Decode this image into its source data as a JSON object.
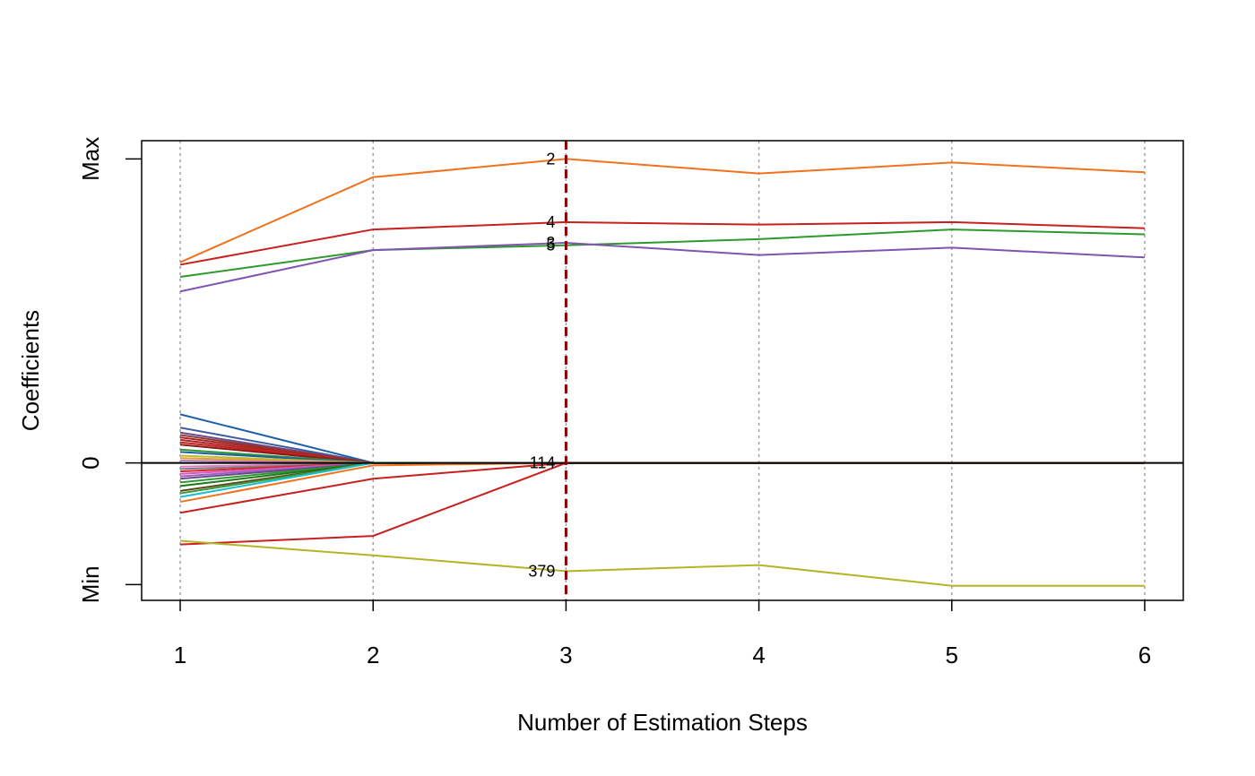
{
  "chart_data": {
    "type": "line",
    "xlabel": "Number of Estimation Steps",
    "ylabel": "Coefficients",
    "x": [
      1,
      2,
      3,
      4,
      5,
      6
    ],
    "xlim": [
      0.8,
      6.2
    ],
    "ylim": [
      -1.13,
      2.65
    ],
    "x_ticks": [
      "1",
      "2",
      "3",
      "4",
      "5",
      "6"
    ],
    "y_ticks": [
      {
        "label": "Min",
        "value": -1.0
      },
      {
        "label": "0",
        "value": 0
      },
      {
        "label": "Max",
        "value": 2.5
      }
    ],
    "vertical_gridlines": [
      1,
      2,
      3,
      4,
      5,
      6
    ],
    "selected_step": 3,
    "highlighted_series": [
      {
        "label": "2",
        "color": "#F2711C",
        "values": [
          1.65,
          2.35,
          2.5,
          2.38,
          2.47,
          2.39
        ]
      },
      {
        "label": "4",
        "color": "#C8201E",
        "values": [
          1.63,
          1.92,
          1.98,
          1.96,
          1.98,
          1.93
        ]
      },
      {
        "label": "5",
        "color": "#2E9A2E",
        "values": [
          1.53,
          1.75,
          1.79,
          1.84,
          1.92,
          1.88
        ]
      },
      {
        "label": "3",
        "color": "#8054B0",
        "values": [
          1.41,
          1.75,
          1.81,
          1.71,
          1.77,
          1.69
        ]
      },
      {
        "label": "114",
        "color": "#C8201E",
        "values": [
          -0.41,
          -0.13,
          0,
          0,
          0,
          0
        ]
      },
      {
        "label": "379",
        "color": "#B3B527",
        "values": [
          -0.64,
          -0.76,
          -0.89,
          -0.84,
          -1.01,
          -1.01
        ]
      }
    ],
    "minor_series": [
      {
        "color": "#C8201E",
        "values": [
          -0.67,
          -0.6,
          0,
          0,
          0,
          0
        ]
      },
      {
        "color": "#1F5FA8",
        "values": [
          0.4,
          0,
          0,
          0,
          0,
          0
        ]
      },
      {
        "color": "#3C5E9C",
        "values": [
          0.29,
          0,
          0,
          0,
          0,
          0
        ]
      },
      {
        "color": "#6A4A8C",
        "values": [
          0.25,
          0,
          0,
          0,
          0,
          0
        ]
      },
      {
        "color": "#8B3A3A",
        "values": [
          0.23,
          0,
          0,
          0,
          0,
          0
        ]
      },
      {
        "color": "#B22222",
        "values": [
          0.21,
          0,
          0,
          0,
          0,
          0
        ]
      },
      {
        "color": "#A52A2A",
        "values": [
          0.19,
          0,
          0,
          0,
          0,
          0
        ]
      },
      {
        "color": "#C8201E",
        "values": [
          0.17,
          0,
          0,
          0,
          0,
          0
        ]
      },
      {
        "color": "#8B1A1A",
        "values": [
          0.15,
          0,
          0,
          0,
          0,
          0
        ]
      },
      {
        "color": "#2E9A2E",
        "values": [
          0.11,
          0,
          0,
          0,
          0,
          0
        ]
      },
      {
        "color": "#1F5FA8",
        "values": [
          0.09,
          0,
          0,
          0,
          0,
          0
        ]
      },
      {
        "color": "#BBBB33",
        "values": [
          0.06,
          0,
          0,
          0,
          0,
          0
        ]
      },
      {
        "color": "#E0A030",
        "values": [
          0.04,
          0,
          0,
          0,
          0,
          0
        ]
      },
      {
        "color": "#C080C0",
        "values": [
          0.02,
          0,
          0,
          0,
          0,
          0
        ]
      },
      {
        "color": "#8054B0",
        "values": [
          0.0,
          0,
          0,
          0,
          0,
          0
        ]
      },
      {
        "color": "#E377C2",
        "values": [
          -0.03,
          0,
          0,
          0,
          0,
          0
        ]
      },
      {
        "color": "#7F7F7F",
        "values": [
          -0.05,
          0,
          0,
          0,
          0,
          0
        ]
      },
      {
        "color": "#D62728",
        "values": [
          -0.07,
          0,
          0,
          0,
          0,
          0
        ]
      },
      {
        "color": "#E055C0",
        "values": [
          -0.09,
          0,
          0,
          0,
          0,
          0
        ]
      },
      {
        "color": "#9467BD",
        "values": [
          -0.11,
          0,
          0,
          0,
          0,
          0
        ]
      },
      {
        "color": "#6A4A8C",
        "values": [
          -0.13,
          0,
          0,
          0,
          0,
          0
        ]
      },
      {
        "color": "#2E9A2E",
        "values": [
          -0.16,
          0,
          0,
          0,
          0,
          0
        ]
      },
      {
        "color": "#1A7A1A",
        "values": [
          -0.19,
          0,
          0,
          0,
          0,
          0
        ]
      },
      {
        "color": "#5C4A1A",
        "values": [
          -0.23,
          0,
          0,
          0,
          0,
          0
        ]
      },
      {
        "color": "#3A9A3A",
        "values": [
          -0.25,
          0,
          0,
          0,
          0,
          0
        ]
      },
      {
        "color": "#17BECF",
        "values": [
          -0.28,
          0,
          0,
          0,
          0,
          0
        ]
      },
      {
        "color": "#F2711C",
        "values": [
          -0.32,
          -0.02,
          0,
          0,
          0,
          0
        ]
      }
    ]
  }
}
